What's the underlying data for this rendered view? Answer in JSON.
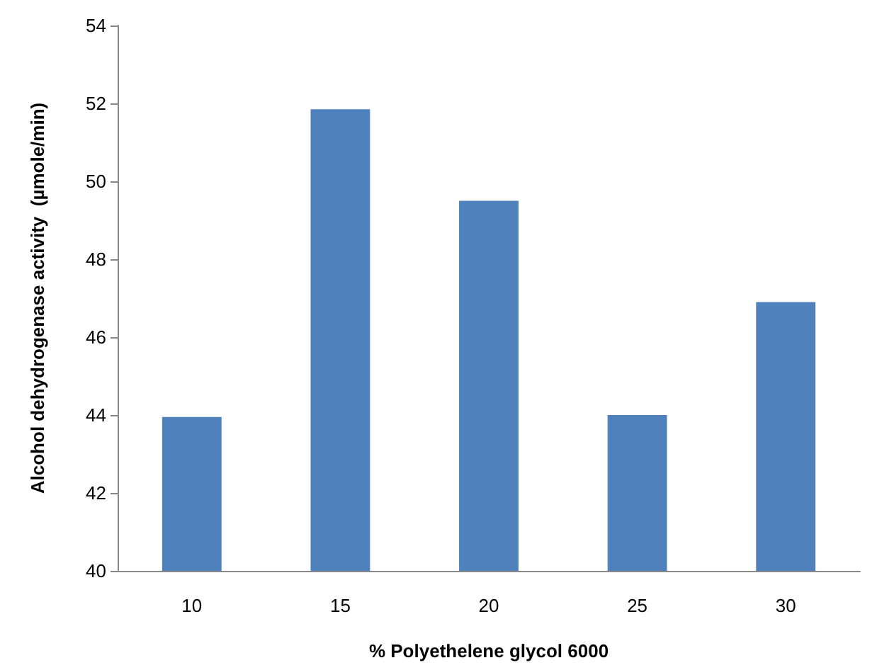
{
  "chart_data": {
    "type": "bar",
    "xlabel": "% Polyethelene glycol 6000",
    "ylabel": "Alcohol dehydrogenase activity  (µmole/min)",
    "categories": [
      "10",
      "15",
      "20",
      "25",
      "30"
    ],
    "values": [
      43.95,
      51.85,
      49.5,
      44.0,
      46.9
    ],
    "color": "#4f81bd",
    "ylim": [
      40,
      54
    ],
    "yticks": [
      40,
      42,
      44,
      46,
      48,
      50,
      52,
      54
    ],
    "grid": false
  }
}
